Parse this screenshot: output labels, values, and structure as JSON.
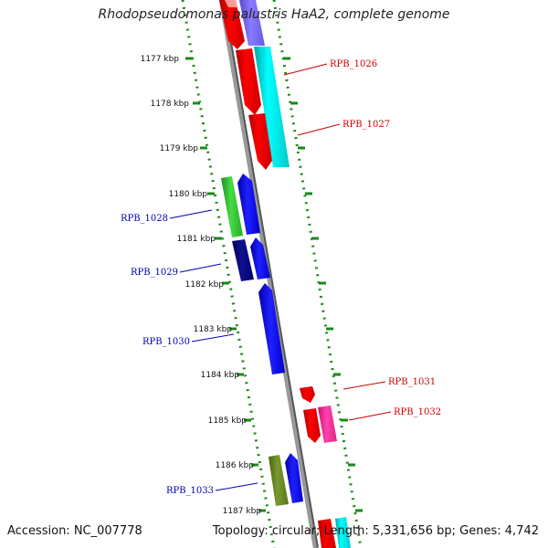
{
  "title": "Rhodopseudomonas palustris HaA2, complete genome",
  "footer": {
    "accession": "Accession: NC_007778",
    "topology": "Topology: circular; Length: 5,331,656 bp; Genes: 4,742"
  },
  "ticks": [
    "1177 kbp",
    "1178 kbp",
    "1179 kbp",
    "1180 kbp",
    "1181 kbp",
    "1182 kbp",
    "1183 kbp",
    "1184 kbp",
    "1185 kbp",
    "1186 kbp",
    "1187 kbp"
  ],
  "gene_labels": {
    "RPB_1026": "RPB_1026",
    "RPB_1027": "RPB_1027",
    "RPB_1028": "RPB_1028",
    "RPB_1029": "RPB_1029",
    "RPB_1030": "RPB_1030",
    "RPB_1031": "RPB_1031",
    "RPB_1032": "RPB_1032",
    "RPB_1033": "RPB_1033"
  },
  "colors": {
    "backbone": "#888888",
    "tick_dots": "#1a8a1a",
    "reverse_label": "#cc0000",
    "forward_label": "#0000bb",
    "red": "#ff0000",
    "cyan": "#00f0f0",
    "blue": "#0000ff",
    "green": "#33cc33",
    "navy": "#000080",
    "pink": "#ff3399",
    "olive": "#6b8e23",
    "purple": "#7b68ee"
  }
}
